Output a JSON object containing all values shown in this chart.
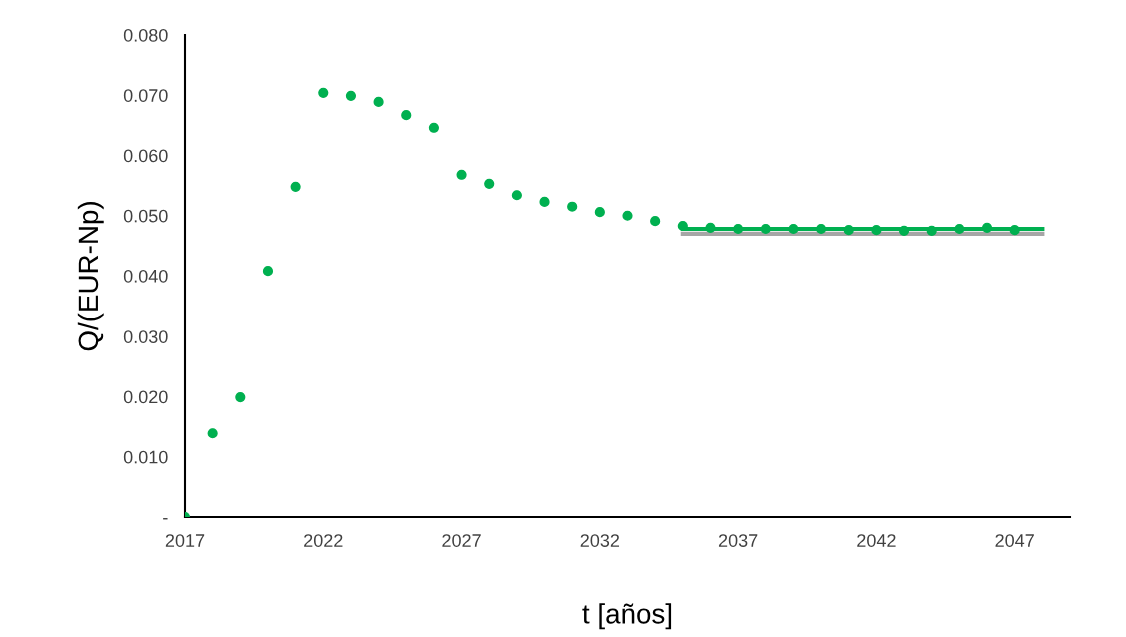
{
  "chart_data": {
    "type": "scatter",
    "xlabel": "t [años]",
    "ylabel": "Q/(EUR-Np)",
    "xlim": [
      2017,
      2049
    ],
    "xticks": [
      2017,
      2022,
      2027,
      2032,
      2037,
      2042,
      2047
    ],
    "ylim": [
      0,
      0.08
    ],
    "yticks": [
      {
        "value": 0,
        "label": "-"
      },
      {
        "value": 0.01,
        "label": "0.010"
      },
      {
        "value": 0.02,
        "label": "0.020"
      },
      {
        "value": 0.03,
        "label": "0.030"
      },
      {
        "value": 0.04,
        "label": "0.040"
      },
      {
        "value": 0.05,
        "label": "0.050"
      },
      {
        "value": 0.06,
        "label": "0.060"
      },
      {
        "value": 0.07,
        "label": "0.070"
      },
      {
        "value": 0.08,
        "label": "0.080"
      }
    ],
    "grid": false,
    "legend": false,
    "series": [
      {
        "type": "line",
        "marker": "none",
        "color": "#a6a6a6",
        "x": [
          2035,
          2048
        ],
        "values": [
          0.047,
          0.047
        ]
      },
      {
        "type": "line",
        "marker": "none",
        "color": "#00b050",
        "x": [
          2035,
          2048
        ],
        "values": [
          0.0478,
          0.0478
        ]
      },
      {
        "marker": "circle",
        "color": "#00b050",
        "x": [
          2017,
          2018,
          2019,
          2020,
          2021,
          2022,
          2023,
          2024,
          2025,
          2026,
          2027,
          2028,
          2029,
          2030,
          2031,
          2032,
          2033,
          2034,
          2035,
          2036,
          2037,
          2038,
          2039,
          2040,
          2041,
          2042,
          2043,
          2044,
          2045,
          2046,
          2047
        ],
        "values": [
          0,
          0.0139,
          0.0199,
          0.0408,
          0.0548,
          0.0704,
          0.0699,
          0.0689,
          0.0667,
          0.0646,
          0.0568,
          0.0553,
          0.0534,
          0.0523,
          0.0515,
          0.0506,
          0.05,
          0.0491,
          0.0483,
          0.048,
          0.0478,
          0.0478,
          0.0478,
          0.0478,
          0.0476,
          0.0476,
          0.0475,
          0.0475,
          0.0478,
          0.048,
          0.0476
        ]
      }
    ]
  }
}
